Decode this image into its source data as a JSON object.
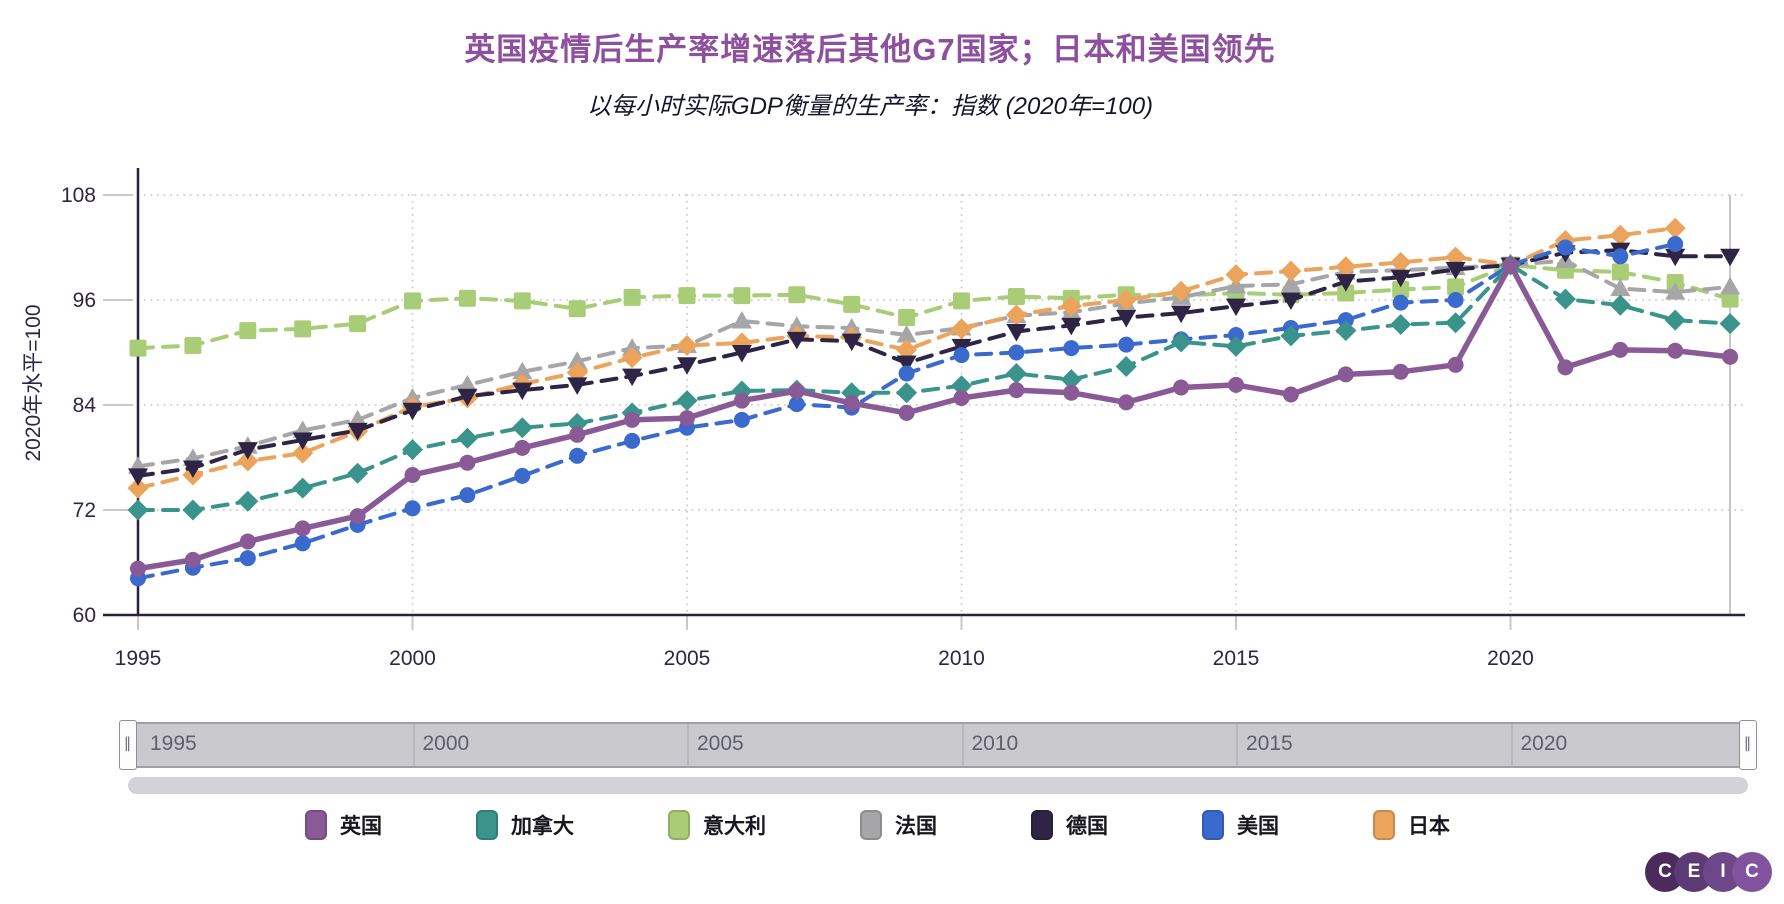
{
  "title": "英国疫情后生产率增速落后其他G7国家；日本和美国领先",
  "subtitle": "以每小时实际GDP衡量的生产率：指数 (2020年=100)",
  "y_axis_title": "2020年水平=100",
  "colors": {
    "title": "#8e4f9e",
    "axis_text": "#2e2547",
    "axis_line": "#2a1f3d",
    "gridline": "#d0d0d0",
    "plot_right_border": "#c8c8c8"
  },
  "chart_data": {
    "type": "line",
    "title": "英国疫情后生产率增速落后其他G7国家；日本和美国领先",
    "subtitle": "以每小时实际GDP衡量的生产率：指数 (2020年=100)",
    "xlabel": "",
    "ylabel": "2020年水平=100",
    "ylim": [
      60,
      108
    ],
    "yticks": [
      60,
      72,
      84,
      96,
      108
    ],
    "xticks": [
      1995,
      2000,
      2005,
      2010,
      2015,
      2020
    ],
    "grid": true,
    "legend_position": "bottom",
    "years": [
      1995,
      1996,
      1997,
      1998,
      1999,
      2000,
      2001,
      2002,
      2003,
      2004,
      2005,
      2006,
      2007,
      2008,
      2009,
      2010,
      2011,
      2012,
      2013,
      2014,
      2015,
      2016,
      2017,
      2018,
      2019,
      2020,
      2021,
      2022,
      2023,
      2024
    ],
    "series": [
      {
        "id": "uk",
        "name": "英国",
        "color": "#8a5a96",
        "marker": "circle",
        "line": "solid",
        "values": [
          65.3,
          66.3,
          68.4,
          69.9,
          71.3,
          76.0,
          77.4,
          79.1,
          80.6,
          82.3,
          82.5,
          84.5,
          85.6,
          84.2,
          83.1,
          84.8,
          85.7,
          85.4,
          84.3,
          86.0,
          86.3,
          85.2,
          87.5,
          87.8,
          88.6,
          100,
          88.3,
          90.3,
          90.2,
          89.5
        ]
      },
      {
        "id": "canada",
        "name": "加拿大",
        "color": "#3a948c",
        "marker": "diamond",
        "line": "dashed",
        "values": [
          72.0,
          72.0,
          73.0,
          74.5,
          76.2,
          78.9,
          80.2,
          81.4,
          81.9,
          83.1,
          84.5,
          85.6,
          85.7,
          85.4,
          85.4,
          86.2,
          87.6,
          86.9,
          88.4,
          91.2,
          90.7,
          91.9,
          92.5,
          93.2,
          93.4,
          100,
          96.1,
          95.4,
          93.7,
          93.3
        ]
      },
      {
        "id": "italy",
        "name": "意大利",
        "color": "#a8cd76",
        "marker": "square",
        "line": "dashed",
        "values": [
          90.5,
          90.8,
          92.5,
          92.7,
          93.3,
          95.9,
          96.2,
          95.9,
          95.0,
          96.3,
          96.5,
          96.5,
          96.6,
          95.5,
          94.0,
          95.9,
          96.4,
          96.2,
          96.6,
          96.5,
          96.8,
          96.6,
          96.8,
          97.2,
          97.5,
          100,
          99.4,
          99.2,
          98.0,
          96.1
        ]
      },
      {
        "id": "france",
        "name": "法国",
        "color": "#a6a6a8",
        "marker": "triangle-up",
        "line": "dashed",
        "values": [
          77.0,
          77.9,
          79.3,
          81.1,
          82.3,
          84.8,
          86.3,
          87.8,
          89.0,
          90.5,
          90.8,
          93.6,
          93.0,
          92.8,
          92.0,
          92.8,
          94.2,
          94.6,
          95.6,
          96.3,
          97.6,
          97.8,
          99.2,
          99.4,
          99.7,
          100,
          100.5,
          97.3,
          96.9,
          97.5
        ]
      },
      {
        "id": "germany",
        "name": "德国",
        "color": "#2e2445",
        "marker": "triangle-down",
        "line": "dashed",
        "values": [
          75.9,
          76.8,
          78.9,
          80.0,
          81.1,
          83.4,
          85.0,
          85.7,
          86.3,
          87.3,
          88.6,
          90.0,
          91.5,
          91.3,
          88.8,
          90.7,
          92.4,
          93.1,
          94.0,
          94.5,
          95.3,
          96.0,
          98.1,
          98.6,
          99.5,
          100,
          101.4,
          101.7,
          101.0,
          101.0
        ]
      },
      {
        "id": "us",
        "name": "美国",
        "color": "#3b6ace",
        "marker": "circle",
        "line": "dashed",
        "values": [
          64.2,
          65.4,
          66.5,
          68.2,
          70.3,
          72.2,
          73.7,
          75.9,
          78.2,
          79.9,
          81.4,
          82.3,
          84.1,
          83.7,
          87.6,
          89.7,
          90.0,
          90.5,
          90.9,
          91.5,
          92.0,
          92.8,
          93.7,
          95.7,
          96.0,
          100,
          102.0,
          101.0,
          102.4,
          null
        ]
      },
      {
        "id": "japan",
        "name": "日本",
        "color": "#eca35b",
        "marker": "diamond",
        "line": "dashed",
        "values": [
          74.5,
          76.0,
          77.6,
          78.5,
          81.0,
          83.8,
          84.8,
          86.4,
          87.7,
          89.4,
          90.8,
          91.1,
          91.9,
          91.7,
          90.3,
          92.7,
          94.3,
          95.3,
          96.0,
          97.0,
          98.9,
          99.3,
          99.8,
          100.3,
          100.9,
          100,
          102.8,
          103.4,
          104.2,
          null
        ]
      }
    ]
  },
  "slider": {
    "labels": [
      1995,
      2000,
      2005,
      2010,
      2015,
      2020
    ],
    "handle_glyph": "∥"
  },
  "logo": {
    "letters": [
      "C",
      "E",
      "I",
      "C"
    ],
    "circle_colors": [
      "#4a2b5c",
      "#5c3a74",
      "#6e4788",
      "#80539c"
    ]
  }
}
